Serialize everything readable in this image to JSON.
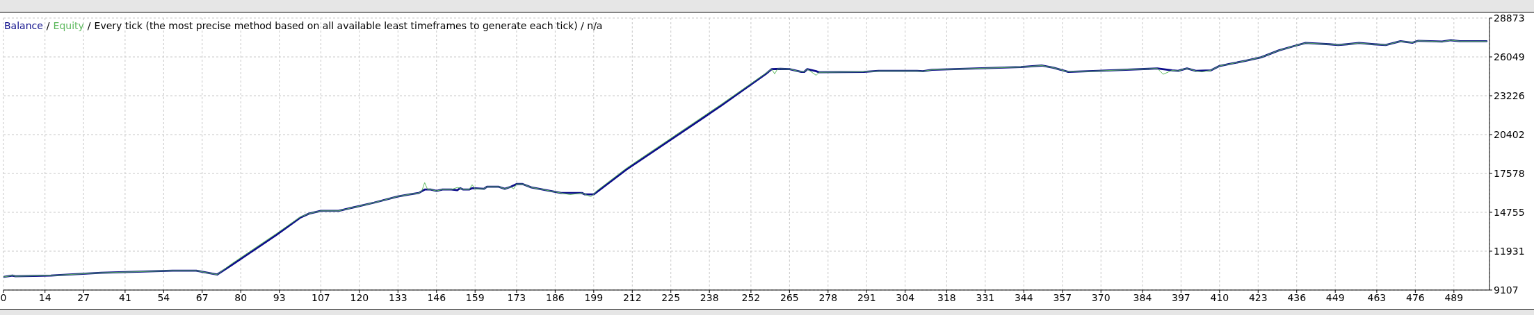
{
  "chart_data": {
    "type": "line",
    "title": "Every tick (the most precise method based on all available least timeframes to generate each tick) / n/a",
    "annotations": [
      "/",
      "/"
    ],
    "series": [
      {
        "name": "Balance",
        "color": "#0c0c8a",
        "x": [
          0,
          3,
          4,
          16,
          33,
          49,
          57,
          65,
          72,
          77,
          92,
          100,
          103,
          107,
          113,
          117,
          125,
          133,
          137,
          140,
          142,
          144,
          146,
          148,
          151,
          153,
          154,
          155,
          157,
          158,
          162,
          163,
          167,
          169,
          171,
          173,
          175,
          178,
          183,
          188,
          195,
          196,
          199,
          210,
          242,
          257,
          259,
          262,
          265,
          269,
          270,
          271,
          274,
          275,
          290,
          295,
          308,
          310,
          313,
          328,
          343,
          350,
          354,
          359,
          369,
          386,
          389,
          394,
          396,
          399,
          402,
          407,
          410,
          414,
          419,
          424,
          430,
          435,
          439,
          447,
          450,
          453,
          457,
          462,
          466,
          471,
          475,
          477,
          485,
          488,
          491,
          500
        ],
        "values": [
          10060,
          10160,
          10110,
          10160,
          10360,
          10460,
          10510,
          10510,
          10230,
          10930,
          13110,
          14360,
          14660,
          14860,
          14860,
          15060,
          15460,
          15910,
          16060,
          16160,
          16410,
          16410,
          16310,
          16410,
          16410,
          16360,
          16510,
          16410,
          16410,
          16510,
          16460,
          16610,
          16610,
          16460,
          16610,
          16810,
          16810,
          16560,
          16360,
          16160,
          16160,
          16060,
          16060,
          17860,
          22510,
          24810,
          25160,
          25180,
          25160,
          24960,
          24960,
          25160,
          25010,
          24930,
          24960,
          25030,
          25030,
          25010,
          25110,
          25210,
          25310,
          25420,
          25260,
          24960,
          25030,
          25180,
          25210,
          25070,
          25030,
          25210,
          25030,
          25070,
          25390,
          25560,
          25780,
          26020,
          26520,
          26830,
          27060,
          26970,
          26910,
          26970,
          27060,
          26970,
          26910,
          27190,
          27080,
          27220,
          27160,
          27260,
          27190,
          27190
        ]
      },
      {
        "name": "Equity",
        "color": "#5cb85c",
        "x": [
          0,
          3,
          4,
          16,
          33,
          49,
          57,
          65,
          72,
          77,
          92,
          100,
          103,
          107,
          113,
          117,
          125,
          133,
          137,
          140,
          141,
          142,
          143,
          144,
          146,
          148,
          151,
          153,
          154,
          155,
          157,
          158,
          159,
          162,
          163,
          167,
          169,
          171,
          172,
          173,
          175,
          178,
          183,
          188,
          191,
          195,
          196,
          198,
          199,
          200,
          210,
          242,
          257,
          259,
          260,
          261,
          262,
          265,
          269,
          270,
          271,
          274,
          275,
          290,
          295,
          308,
          310,
          313,
          328,
          343,
          350,
          354,
          359,
          369,
          386,
          389,
          391,
          394,
          396,
          399,
          402,
          404,
          407,
          410,
          414,
          419,
          424,
          430,
          435,
          439,
          447,
          450,
          453,
          457,
          462,
          466,
          471,
          475,
          477,
          485,
          488,
          491,
          500
        ],
        "values": [
          10060,
          10160,
          10110,
          10160,
          10360,
          10460,
          10510,
          10510,
          10230,
          11030,
          13210,
          14410,
          14660,
          14860,
          14860,
          15060,
          15460,
          15910,
          16060,
          16160,
          16290,
          16910,
          16410,
          16410,
          16310,
          16410,
          16410,
          16560,
          16510,
          16410,
          16410,
          16760,
          16460,
          16460,
          16610,
          16610,
          16460,
          16610,
          16460,
          16810,
          16810,
          16560,
          16360,
          16160,
          16040,
          16160,
          16060,
          15890,
          16060,
          16310,
          17960,
          22610,
          24860,
          25160,
          24820,
          25180,
          25180,
          25160,
          24960,
          24960,
          25160,
          24710,
          24930,
          24960,
          25030,
          25030,
          25010,
          25110,
          25210,
          25310,
          25420,
          25260,
          24960,
          25030,
          25180,
          25210,
          24790,
          25070,
          25030,
          25210,
          25030,
          24960,
          25070,
          25390,
          25560,
          25780,
          26020,
          26520,
          26830,
          27060,
          26970,
          26910,
          26970,
          27060,
          26970,
          26910,
          27190,
          27080,
          27220,
          27160,
          27260,
          27190,
          27190
        ]
      }
    ],
    "xlim": [
      0,
      501
    ],
    "xticks": [
      0,
      14,
      27,
      41,
      54,
      67,
      80,
      93,
      107,
      120,
      133,
      146,
      159,
      173,
      186,
      199,
      212,
      225,
      238,
      252,
      265,
      278,
      291,
      304,
      318,
      331,
      344,
      357,
      370,
      384,
      397,
      410,
      423,
      436,
      449,
      463,
      476,
      489
    ],
    "ylim": [
      9107,
      28873
    ],
    "yticks": [
      9107,
      11931,
      14755,
      17578,
      20402,
      23226,
      26049,
      28873
    ],
    "grid": true,
    "legend": "top left"
  }
}
